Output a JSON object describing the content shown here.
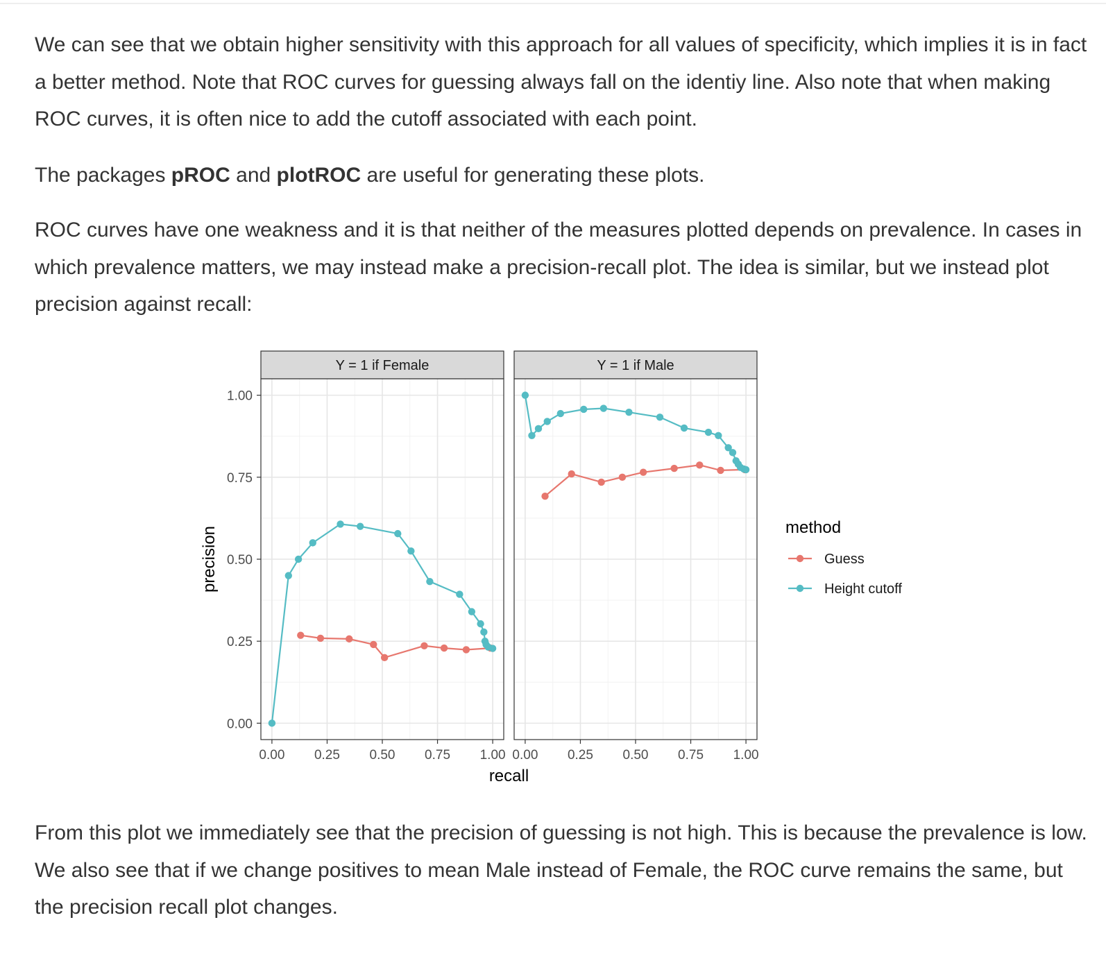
{
  "paragraphs": {
    "p1": "We can see that we obtain higher sensitivity with this approach for all values of specificity, which implies it is in fact a better method. Note that ROC curves for guessing always fall on the identiy line. Also note that when making ROC curves, it is often nice to add the cutoff associated with each point.",
    "p2_pre": "The packages ",
    "p2_bold1": "pROC",
    "p2_mid": " and ",
    "p2_bold2": "plotROC",
    "p2_post": " are useful for generating these plots.",
    "p3": "ROC curves have one weakness and it is that neither of the measures plotted depends on prevalence. In cases in which prevalence matters, we may instead make a precision-recall plot. The idea is similar, but we instead plot precision against recall:",
    "p4": "From this plot we immediately see that the precision of guessing is not high. This is because the prevalence is low. We also see that if we change positives to mean Male instead of Female, the ROC curve remains the same, but the precision recall plot changes."
  },
  "chart_data": {
    "type": "line",
    "xlabel": "recall",
    "ylabel": "precision",
    "xlim": [
      -0.05,
      1.05
    ],
    "ylim": [
      -0.05,
      1.05
    ],
    "x_ticks": [
      "0.00",
      "0.25",
      "0.50",
      "0.75",
      "1.00"
    ],
    "y_ticks": [
      "0.00",
      "0.25",
      "0.50",
      "0.75",
      "1.00"
    ],
    "grid": true,
    "legend": {
      "title": "method",
      "position": "right",
      "entries": [
        "Guess",
        "Height cutoff"
      ]
    },
    "colors": {
      "Guess": "#E7776E",
      "Height cutoff": "#55BCC4"
    },
    "panels": [
      {
        "title": "Y = 1 if Female",
        "series": [
          {
            "name": "Guess",
            "points": [
              [
                0.13,
                0.268
              ],
              [
                0.22,
                0.259
              ],
              [
                0.35,
                0.257
              ],
              [
                0.46,
                0.24
              ],
              [
                0.51,
                0.2
              ],
              [
                0.69,
                0.236
              ],
              [
                0.78,
                0.229
              ],
              [
                0.88,
                0.224
              ],
              [
                0.99,
                0.229
              ]
            ]
          },
          {
            "name": "Height cutoff",
            "points": [
              [
                0.0,
                0.0
              ],
              [
                0.075,
                0.45
              ],
              [
                0.12,
                0.5
              ],
              [
                0.185,
                0.55
              ],
              [
                0.31,
                0.607
              ],
              [
                0.4,
                0.6
              ],
              [
                0.57,
                0.578
              ],
              [
                0.63,
                0.525
              ],
              [
                0.715,
                0.432
              ],
              [
                0.85,
                0.393
              ],
              [
                0.905,
                0.34
              ],
              [
                0.945,
                0.303
              ],
              [
                0.96,
                0.278
              ],
              [
                0.965,
                0.25
              ],
              [
                0.97,
                0.24
              ],
              [
                0.98,
                0.232
              ],
              [
                1.0,
                0.228
              ]
            ]
          }
        ]
      },
      {
        "title": "Y = 1 if Male",
        "series": [
          {
            "name": "Guess",
            "points": [
              [
                0.09,
                0.692
              ],
              [
                0.21,
                0.76
              ],
              [
                0.345,
                0.735
              ],
              [
                0.44,
                0.75
              ],
              [
                0.535,
                0.765
              ],
              [
                0.675,
                0.777
              ],
              [
                0.79,
                0.787
              ],
              [
                0.885,
                0.771
              ],
              [
                0.995,
                0.773
              ]
            ]
          },
          {
            "name": "Height cutoff",
            "points": [
              [
                0.0,
                1.0
              ],
              [
                0.03,
                0.877
              ],
              [
                0.06,
                0.898
              ],
              [
                0.1,
                0.92
              ],
              [
                0.16,
                0.944
              ],
              [
                0.265,
                0.957
              ],
              [
                0.355,
                0.96
              ],
              [
                0.47,
                0.948
              ],
              [
                0.61,
                0.933
              ],
              [
                0.72,
                0.9
              ],
              [
                0.83,
                0.887
              ],
              [
                0.875,
                0.877
              ],
              [
                0.92,
                0.84
              ],
              [
                0.94,
                0.825
              ],
              [
                0.955,
                0.8
              ],
              [
                0.965,
                0.79
              ],
              [
                0.975,
                0.78
              ],
              [
                0.99,
                0.775
              ],
              [
                1.0,
                0.773
              ]
            ]
          }
        ]
      }
    ]
  }
}
